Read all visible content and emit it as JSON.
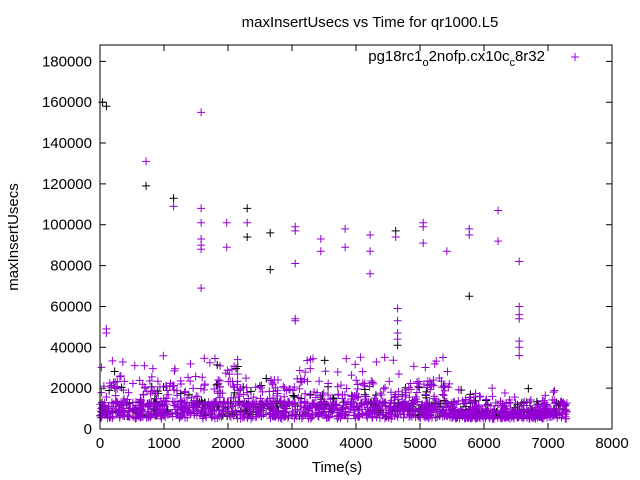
{
  "chart_data": {
    "type": "scatter",
    "title": "maxInsertUsecs vs Time for qr1000.L5",
    "xlabel": "Time(s)",
    "ylabel": "maxInsertUsecs",
    "xlim": [
      0,
      8000
    ],
    "ylim": [
      0,
      188000
    ],
    "xticks": [
      "0",
      "1000",
      "2000",
      "3000",
      "4000",
      "5000",
      "6000",
      "7000",
      "8000"
    ],
    "yticks": [
      "0",
      "20000",
      "40000",
      "60000",
      "80000",
      "100000",
      "120000",
      "140000",
      "160000",
      "180000"
    ],
    "grid": false,
    "legend_position": "top-right",
    "legend": {
      "p1": "pg18rc1",
      "s1": "o",
      "p2": "2nofp.cx10c",
      "s2": "c",
      "p3": "8r32"
    },
    "series": [
      {
        "name": "pg18rc1_o2nofp.cx10c_c8r32",
        "color": "#9400d3",
        "outliers": [
          [
            100,
            49000
          ],
          [
            100,
            47000
          ],
          [
            720,
            131000
          ],
          [
            1150,
            109000
          ],
          [
            1580,
            155000
          ],
          [
            1580,
            108000
          ],
          [
            1580,
            101000
          ],
          [
            1580,
            93000
          ],
          [
            1580,
            90000
          ],
          [
            1580,
            88000
          ],
          [
            1580,
            69000
          ],
          [
            1980,
            101000
          ],
          [
            1980,
            89000
          ],
          [
            2300,
            101000
          ],
          [
            3050,
            99000
          ],
          [
            3050,
            97000
          ],
          [
            3050,
            81000
          ],
          [
            3050,
            54000
          ],
          [
            3050,
            53000
          ],
          [
            3450,
            93000
          ],
          [
            3450,
            87000
          ],
          [
            3830,
            98000
          ],
          [
            3830,
            89000
          ],
          [
            4220,
            95000
          ],
          [
            4220,
            87000
          ],
          [
            4220,
            76000
          ],
          [
            4620,
            94000
          ],
          [
            4650,
            59000
          ],
          [
            4650,
            53000
          ],
          [
            4650,
            47000
          ],
          [
            4650,
            44000
          ],
          [
            5050,
            101000
          ],
          [
            5050,
            99000
          ],
          [
            5050,
            91000
          ],
          [
            5420,
            87000
          ],
          [
            5770,
            98000
          ],
          [
            5770,
            95000
          ],
          [
            6220,
            107000
          ],
          [
            6220,
            92000
          ],
          [
            6550,
            82000
          ],
          [
            6550,
            60000
          ],
          [
            6550,
            56000
          ],
          [
            6550,
            54000
          ],
          [
            6550,
            43000
          ],
          [
            6550,
            40000
          ],
          [
            6550,
            36000
          ]
        ],
        "band": {
          "x_range": [
            0,
            7300
          ],
          "y_low": 5000,
          "y_high": 24000,
          "y_peak": 36000,
          "count": 1400
        }
      },
      {
        "name": "",
        "color": "#000000",
        "outliers": [
          [
            40,
            160000
          ],
          [
            100,
            158000
          ],
          [
            720,
            119000
          ],
          [
            1150,
            113000
          ],
          [
            2300,
            108000
          ],
          [
            2300,
            94000
          ],
          [
            2660,
            96000
          ],
          [
            2660,
            78000
          ],
          [
            4620,
            97000
          ],
          [
            4650,
            41000
          ],
          [
            5770,
            65000
          ]
        ],
        "band": {
          "x_range": [
            0,
            7300
          ],
          "y_low": 6000,
          "y_high": 22000,
          "y_peak": 34000,
          "count": 300
        }
      }
    ]
  }
}
